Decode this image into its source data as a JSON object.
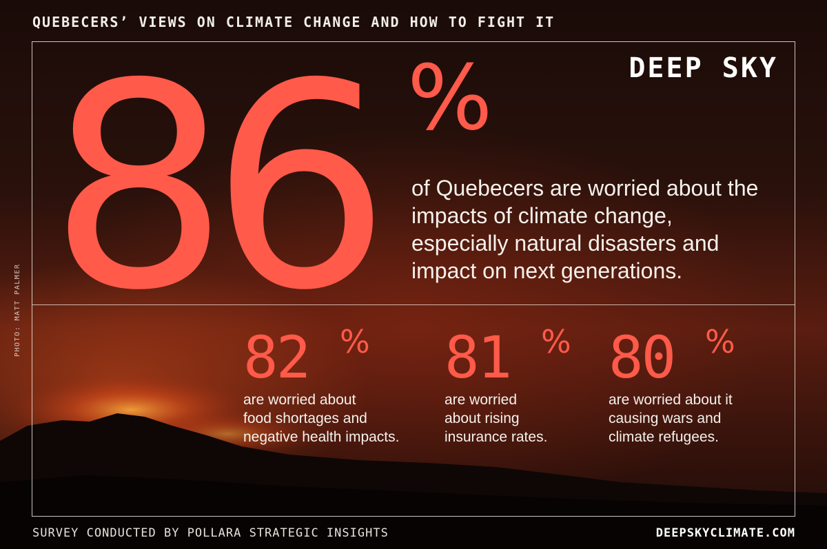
{
  "header": {
    "title": "QUEBECERS’ VIEWS ON CLIMATE CHANGE AND HOW TO FIGHT IT"
  },
  "brand": {
    "logo": "DEEP SKY",
    "accent_color": "#ff5a4a",
    "text_color": "#f5f1ec"
  },
  "headline_stat": {
    "value": "86",
    "unit": "%",
    "caption": "of Quebecers are worried about the impacts of climate change, especially natural disasters and impact on next generations."
  },
  "stats": [
    {
      "value": "82",
      "unit": "%",
      "caption_lines": [
        "are worried about",
        "food shortages and",
        "negative health impacts."
      ]
    },
    {
      "value": "81",
      "unit": "%",
      "caption_lines": [
        "are worried",
        "about rising",
        "insurance rates."
      ]
    },
    {
      "value": "80",
      "unit": "%",
      "caption_lines": [
        "are worried about it",
        "causing wars and",
        "climate refugees."
      ]
    }
  ],
  "photo_credit": "PHOTO: MATT PALMER",
  "footer": {
    "source": "SURVEY CONDUCTED BY POLLARA STRATEGIC INSIGHTS",
    "website": "DEEPSKYCLIMATE.COM"
  }
}
